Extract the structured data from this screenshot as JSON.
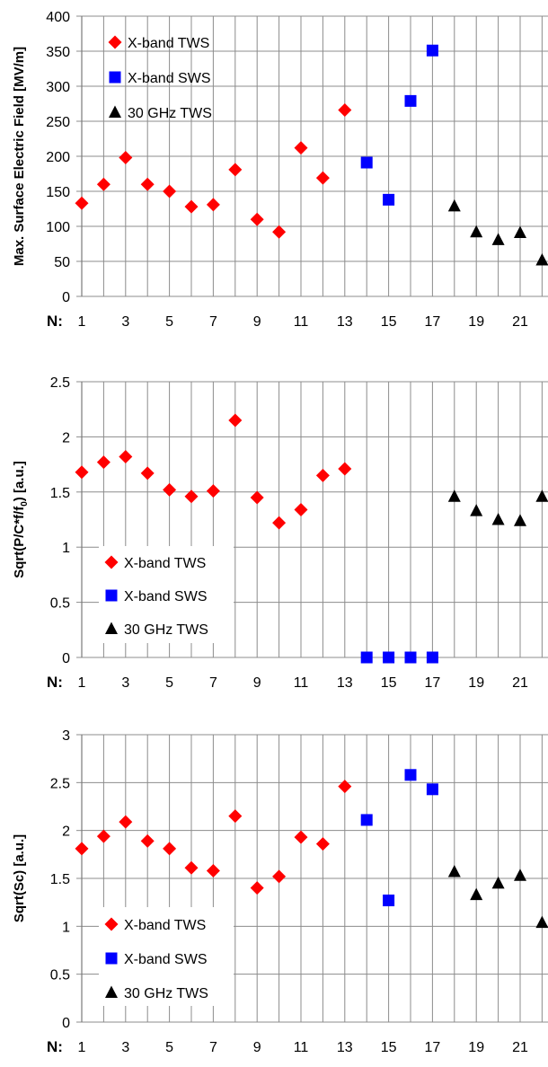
{
  "x_prefix": "N:",
  "legend": [
    "X-band TWS",
    "X-band SWS",
    "30 GHz TWS"
  ],
  "colors": {
    "x_band_tws": "#ff0000",
    "x_band_sws": "#0000ff",
    "ghz30_tws": "#000000",
    "grid": "#8c8c8c"
  },
  "chart_data": [
    {
      "type": "scatter",
      "ylabel": "Max. Surface Electric Field [MV/m]",
      "ylim": [
        0,
        400
      ],
      "yticks": [
        0,
        50,
        100,
        150,
        200,
        250,
        300,
        350,
        400
      ],
      "xticks": [
        1,
        3,
        5,
        7,
        9,
        11,
        13,
        15,
        17,
        19,
        21
      ],
      "xlim": [
        1,
        22
      ],
      "grid": true,
      "legend_position": "top-left",
      "series": [
        {
          "name": "X-band TWS",
          "marker": "diamond",
          "x": [
            1,
            2,
            3,
            4,
            5,
            6,
            7,
            8,
            9,
            10,
            11,
            12,
            13
          ],
          "y": [
            133,
            160,
            198,
            160,
            150,
            128,
            131,
            181,
            110,
            92,
            212,
            169,
            266
          ]
        },
        {
          "name": "X-band SWS",
          "marker": "square",
          "x": [
            14,
            15,
            16,
            17
          ],
          "y": [
            191,
            138,
            279,
            351
          ]
        },
        {
          "name": "30 GHz TWS",
          "marker": "triangle",
          "x": [
            18,
            19,
            20,
            21,
            22
          ],
          "y": [
            129,
            92,
            81,
            91,
            52
          ]
        }
      ]
    },
    {
      "type": "scatter",
      "ylabel": "Sqrt(P/C*f/f0)  [a.u.]",
      "ylim": [
        0,
        2.5
      ],
      "yticks": [
        "0",
        "0.5",
        "1",
        "1.5",
        "2",
        "2.5"
      ],
      "xticks": [
        1,
        3,
        5,
        7,
        9,
        11,
        13,
        15,
        17,
        19,
        21
      ],
      "xlim": [
        1,
        22
      ],
      "grid": true,
      "legend_position": "bottom-left",
      "series": [
        {
          "name": "X-band TWS",
          "marker": "diamond",
          "x": [
            1,
            2,
            3,
            4,
            5,
            6,
            7,
            8,
            9,
            10,
            11,
            12,
            13
          ],
          "y": [
            1.68,
            1.77,
            1.82,
            1.67,
            1.52,
            1.46,
            1.51,
            2.15,
            1.45,
            1.22,
            1.34,
            1.65,
            1.71
          ]
        },
        {
          "name": "X-band SWS",
          "marker": "square",
          "x": [
            14,
            15,
            16,
            17
          ],
          "y": [
            0,
            0,
            0,
            0
          ]
        },
        {
          "name": "30 GHz TWS",
          "marker": "triangle",
          "x": [
            18,
            19,
            20,
            21,
            22
          ],
          "y": [
            1.46,
            1.33,
            1.25,
            1.24,
            1.46
          ]
        }
      ]
    },
    {
      "type": "scatter",
      "ylabel": "Sqrt(Sc)  [a.u.]",
      "ylim": [
        0,
        3
      ],
      "yticks": [
        "0",
        "0.5",
        "1",
        "1.5",
        "2",
        "2.5",
        "3"
      ],
      "xticks": [
        1,
        3,
        5,
        7,
        9,
        11,
        13,
        15,
        17,
        19,
        21
      ],
      "xlim": [
        1,
        22
      ],
      "grid": true,
      "legend_position": "bottom-left",
      "series": [
        {
          "name": "X-band TWS",
          "marker": "diamond",
          "x": [
            1,
            2,
            3,
            4,
            5,
            6,
            7,
            8,
            9,
            10,
            11,
            12,
            13
          ],
          "y": [
            1.81,
            1.94,
            2.09,
            1.89,
            1.81,
            1.61,
            1.58,
            2.15,
            1.4,
            1.52,
            1.93,
            1.86,
            2.46
          ]
        },
        {
          "name": "X-band SWS",
          "marker": "square",
          "x": [
            14,
            15,
            16,
            17
          ],
          "y": [
            2.11,
            1.27,
            2.58,
            2.43
          ]
        },
        {
          "name": "30 GHz TWS",
          "marker": "triangle",
          "x": [
            18,
            19,
            20,
            21,
            22
          ],
          "y": [
            1.57,
            1.33,
            1.45,
            1.53,
            1.04
          ]
        }
      ]
    }
  ]
}
